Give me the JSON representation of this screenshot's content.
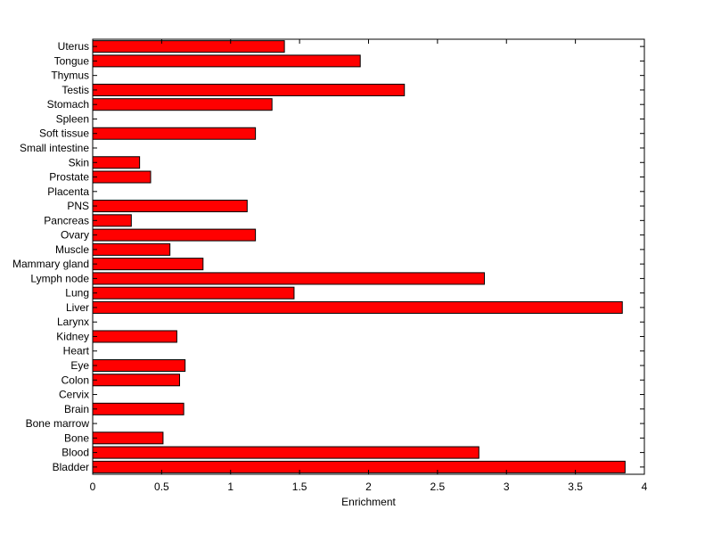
{
  "chart_data": {
    "type": "bar",
    "orientation": "horizontal",
    "title": "",
    "xlabel": "Enrichment",
    "ylabel": "",
    "xlim": [
      0,
      4
    ],
    "xticks": [
      0,
      0.5,
      1,
      1.5,
      2,
      2.5,
      3,
      3.5,
      4
    ],
    "xtick_labels": [
      "0",
      "0.5",
      "1",
      "1.5",
      "2",
      "2.5",
      "3",
      "3.5",
      "4"
    ],
    "grid": false,
    "legend": "none",
    "bar_color": "#ff0000",
    "bar_edge_color": "#000000",
    "categories": [
      "Bladder",
      "Blood",
      "Bone",
      "Bone marrow",
      "Brain",
      "Cervix",
      "Colon",
      "Eye",
      "Heart",
      "Kidney",
      "Larynx",
      "Liver",
      "Lung",
      "Lymph node",
      "Mammary gland",
      "Muscle",
      "Ovary",
      "Pancreas",
      "PNS",
      "Placenta",
      "Prostate",
      "Skin",
      "Small intestine",
      "Soft tissue",
      "Spleen",
      "Stomach",
      "Testis",
      "Thymus",
      "Tongue",
      "Uterus"
    ],
    "values": [
      3.86,
      2.8,
      0.51,
      0,
      0.66,
      0,
      0.63,
      0.67,
      0,
      0.61,
      0,
      3.84,
      1.46,
      2.84,
      0.8,
      0.56,
      1.18,
      0.28,
      1.12,
      0,
      0.42,
      0.34,
      0,
      1.18,
      0,
      1.3,
      2.26,
      0,
      1.94,
      1.39
    ]
  }
}
